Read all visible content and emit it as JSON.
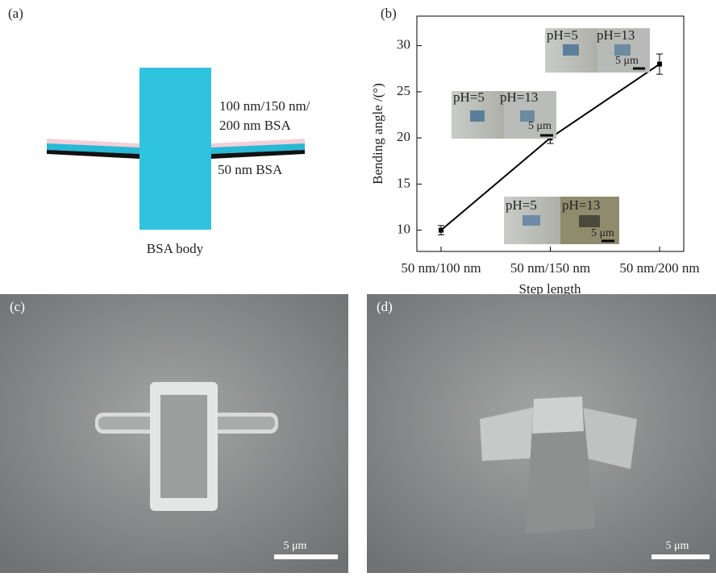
{
  "panel_a": {
    "label": "(a)",
    "layer_top": "100 nm/150 nm/",
    "layer_top_2": "200 nm BSA",
    "layer_bottom": "50 nm BSA",
    "body": "BSA body"
  },
  "chart_data": {
    "type": "line",
    "panel_label": "(b)",
    "x_label": "Step length",
    "y_label": "Bending angle /(°)",
    "categories": [
      "50 nm/100 nm",
      "50 nm/150 nm",
      "50 nm/200 nm"
    ],
    "values": [
      10,
      20,
      28
    ],
    "errors": [
      0.5,
      0.6,
      1.1
    ],
    "color": "#000000",
    "ylim": [
      7.7,
      33.2
    ],
    "yticks": [
      10,
      15,
      20,
      25,
      30
    ],
    "insets": [
      {
        "left": "pH=5",
        "right": "pH=13",
        "scale": "5 μm"
      },
      {
        "left": "pH=5",
        "right": "pH=13",
        "scale": "5 μm"
      },
      {
        "left": "pH=5",
        "right": "pH=13",
        "scale": "5 μm"
      }
    ]
  },
  "panel_c": {
    "label": "(c)",
    "scale": "5 μm"
  },
  "panel_d": {
    "label": "(d)",
    "scale": "5 μm"
  }
}
